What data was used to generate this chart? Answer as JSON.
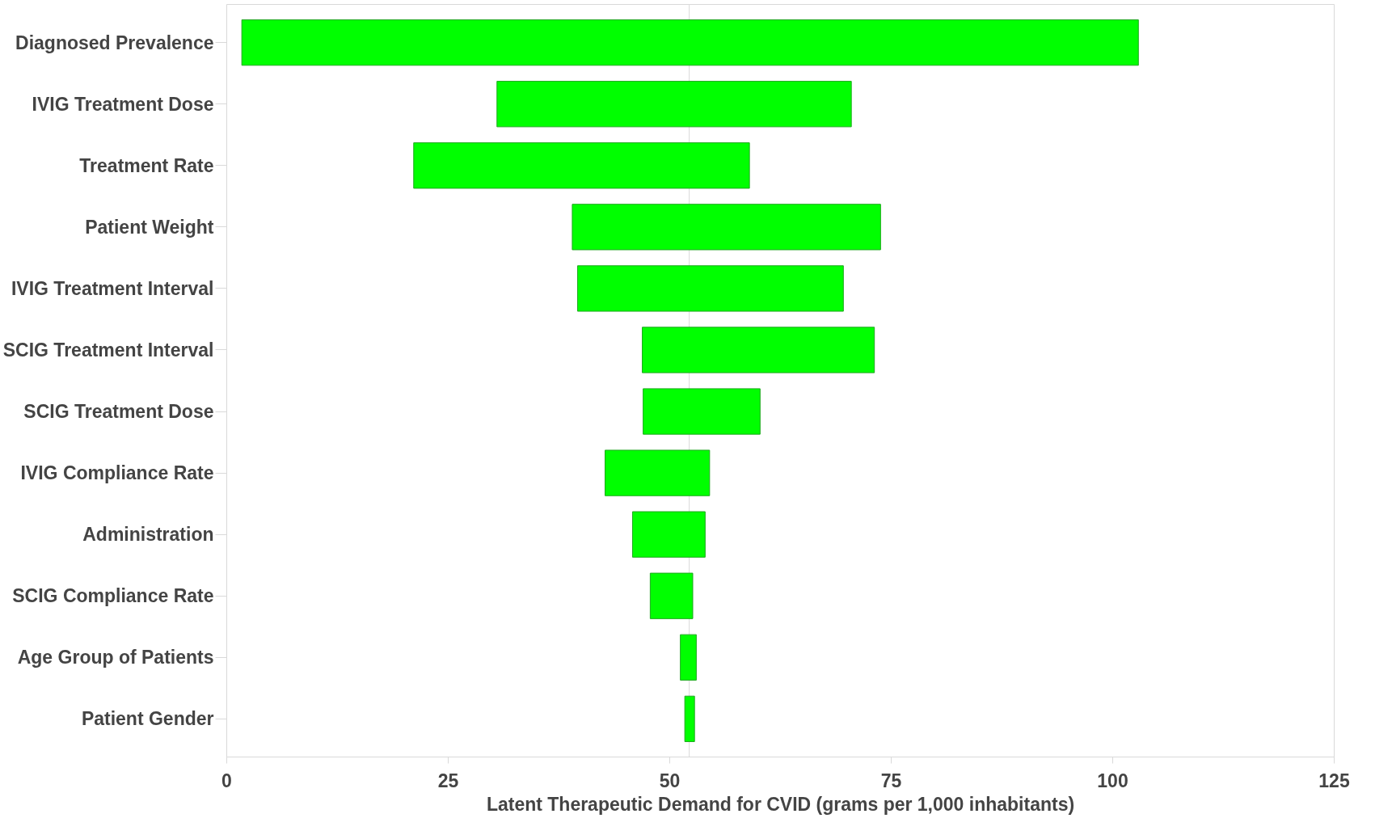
{
  "chart_data": {
    "type": "bar",
    "orientation": "horizontal",
    "xlabel": "Latent Therapeutic Demand for CVID (grams per 1,000 inhabitants)",
    "categories": [
      "Diagnosed Prevalence",
      "IVIG Treatment Dose",
      "Treatment Rate",
      "Patient Weight",
      "IVIG Treatment Interval",
      "SCIG Treatment Interval",
      "SCIG Treatment Dose",
      "IVIG Compliance Rate",
      "Administration",
      "SCIG Compliance Rate",
      "Age Group of Patients",
      "Patient Gender"
    ],
    "base": [
      1.7,
      30.5,
      21.1,
      39.0,
      39.6,
      46.9,
      47.0,
      42.7,
      45.8,
      47.8,
      51.2,
      51.7
    ],
    "values": [
      101.2,
      40.0,
      37.9,
      34.8,
      30.0,
      26.2,
      13.2,
      11.8,
      8.2,
      4.8,
      1.8,
      1.1
    ],
    "color": "#00ff00",
    "xlim": [
      0,
      125
    ],
    "xticks": [
      0,
      25,
      50,
      75,
      100,
      125
    ],
    "ref_lines": [
      {
        "axis": "x",
        "value": 52.2,
        "color": "#d9d9d9"
      }
    ],
    "grid": false
  }
}
